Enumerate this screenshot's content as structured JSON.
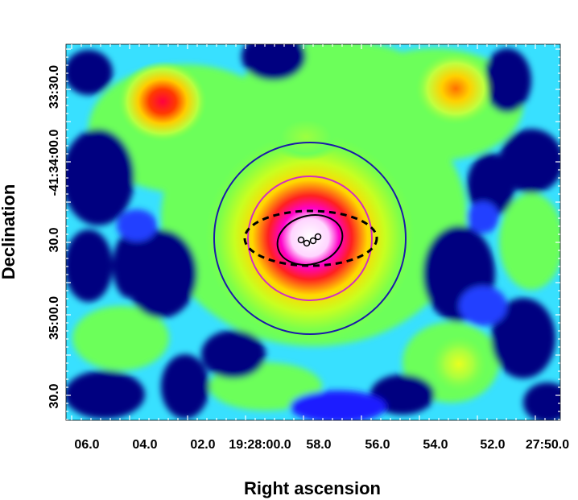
{
  "figure": {
    "axes": {
      "xlabel": "Right ascension",
      "ylabel": "Declination"
    },
    "x_ticks": [
      "06.0",
      "04.0",
      "02.0",
      "19:28:00.0",
      "58.0",
      "56.0",
      "54.0",
      "52.0",
      "27:50.0"
    ],
    "y_ticks": [
      "33:30.0",
      "-41:34:00.0",
      "30.0",
      "35:00.0",
      "30.0"
    ],
    "colors": {
      "background_map": "heat colormap (navy-blue-cyan-green-yellow-red-magenta-white)",
      "outer_circle": "#1a1aa8",
      "inner_circle": "#d22fc0",
      "error_ellipse": "#000000",
      "dashed_ellipse": "#000000"
    },
    "overlays": [
      {
        "name": "outer-circle",
        "style": "solid",
        "color": "#1a1aa8"
      },
      {
        "name": "inner-circle",
        "style": "solid",
        "color": "#d22fc0"
      },
      {
        "name": "solid-ellipse",
        "style": "solid",
        "color": "#000000"
      },
      {
        "name": "dashed-ellipse",
        "style": "dashed",
        "color": "#000000"
      },
      {
        "name": "source-markers",
        "style": "small circles",
        "count": 4
      }
    ]
  }
}
